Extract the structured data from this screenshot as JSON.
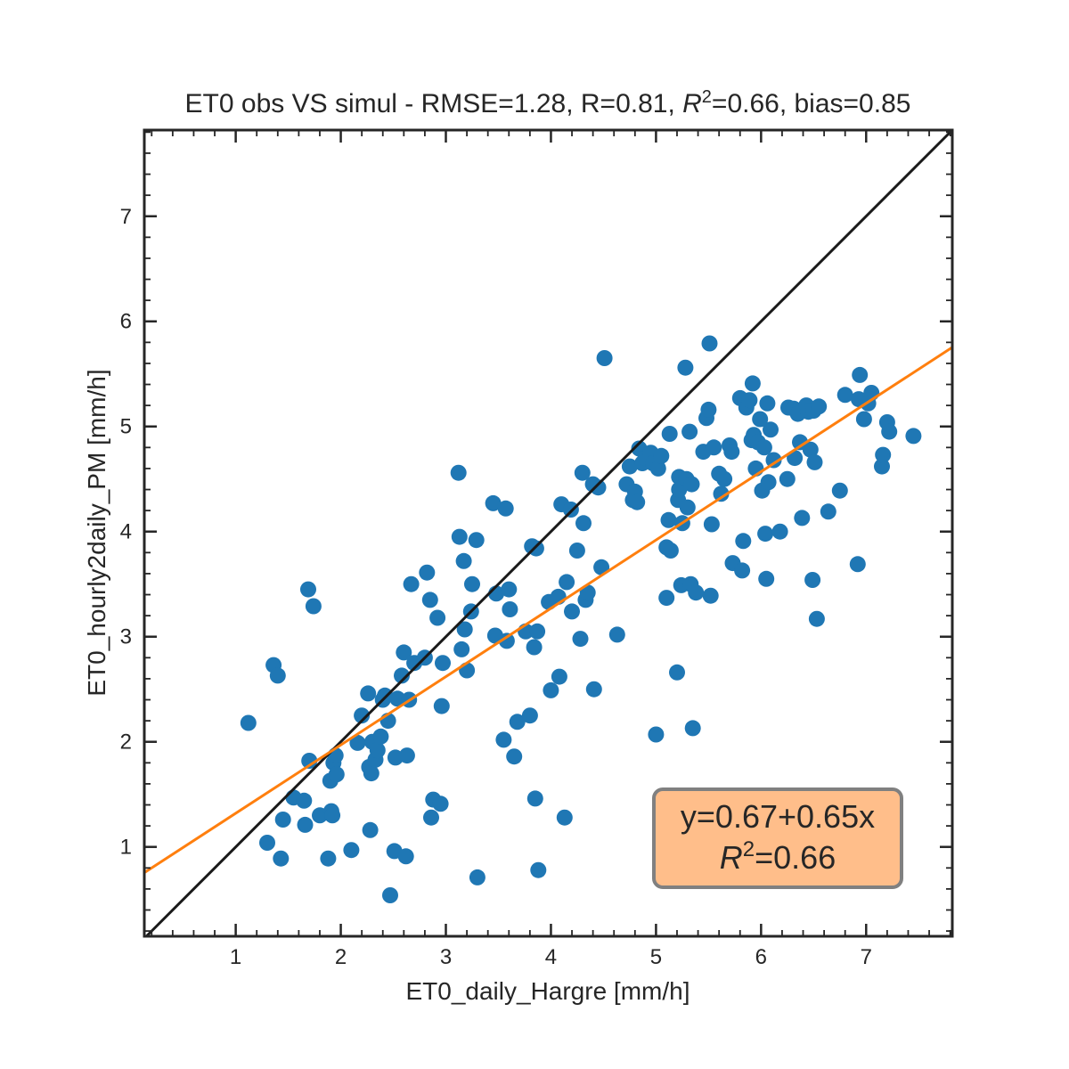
{
  "chart_data": {
    "type": "scatter",
    "title": "ET0 obs VS simul - RMSE=1.28, R=0.81, $R^2$=0.66, bias=0.85",
    "title_parts": {
      "pre": "ET0 obs VS simul - RMSE=1.28, R=0.81, ",
      "r": "R",
      "sup": "2",
      "post": "=0.66, bias=0.85"
    },
    "xlabel": "ET0_daily_Hargre [mm/h]",
    "ylabel": "ET0_hourly2daily_PM [mm/h]",
    "xlim": [
      0.13,
      7.82
    ],
    "ylim": [
      0.15,
      7.82
    ],
    "xticks": [
      1,
      2,
      3,
      4,
      5,
      6,
      7
    ],
    "yticks": [
      1,
      2,
      3,
      4,
      5,
      6,
      7
    ],
    "xtick_labels": [
      "1",
      "2",
      "3",
      "4",
      "5",
      "6",
      "7"
    ],
    "ytick_labels": [
      "1",
      "2",
      "3",
      "4",
      "5",
      "6",
      "7"
    ],
    "grid": false,
    "point_color": "#1f77b4",
    "identity_line": {
      "color": "#1a1a1a"
    },
    "fit_line": {
      "intercept": 0.67,
      "slope": 0.65,
      "color": "#ff7f0e"
    },
    "annotation": {
      "line1": "y=0.67+0.65x",
      "line2_r": "R",
      "line2_sup": "2",
      "line2_post": "=0.66",
      "facecolor": "#ffbe8a",
      "edgecolor": "#808080"
    },
    "points": [
      [
        1.12,
        2.18
      ],
      [
        1.3,
        1.04
      ],
      [
        1.36,
        2.73
      ],
      [
        1.4,
        2.63
      ],
      [
        1.43,
        0.89
      ],
      [
        1.45,
        1.26
      ],
      [
        1.55,
        1.47
      ],
      [
        1.65,
        1.44
      ],
      [
        1.66,
        1.21
      ],
      [
        1.69,
        3.45
      ],
      [
        1.7,
        1.82
      ],
      [
        1.74,
        3.29
      ],
      [
        1.8,
        1.3
      ],
      [
        1.88,
        0.89
      ],
      [
        1.9,
        1.63
      ],
      [
        1.91,
        1.34
      ],
      [
        1.92,
        1.3
      ],
      [
        1.93,
        1.8
      ],
      [
        1.95,
        1.87
      ],
      [
        1.96,
        1.69
      ],
      [
        2.1,
        0.97
      ],
      [
        2.16,
        1.99
      ],
      [
        2.2,
        2.25
      ],
      [
        2.26,
        2.46
      ],
      [
        2.27,
        1.76
      ],
      [
        2.28,
        1.16
      ],
      [
        2.29,
        1.7
      ],
      [
        2.3,
        2.0
      ],
      [
        2.33,
        1.83
      ],
      [
        2.35,
        1.92
      ],
      [
        2.38,
        2.05
      ],
      [
        2.4,
        2.4
      ],
      [
        2.42,
        2.44
      ],
      [
        2.45,
        2.2
      ],
      [
        2.47,
        0.54
      ],
      [
        2.51,
        0.96
      ],
      [
        2.52,
        1.85
      ],
      [
        2.54,
        2.41
      ],
      [
        2.58,
        2.63
      ],
      [
        2.6,
        2.85
      ],
      [
        2.62,
        0.91
      ],
      [
        2.63,
        1.87
      ],
      [
        2.65,
        2.4
      ],
      [
        2.67,
        3.5
      ],
      [
        2.7,
        2.75
      ],
      [
        2.8,
        2.8
      ],
      [
        2.82,
        3.61
      ],
      [
        2.85,
        3.35
      ],
      [
        2.86,
        1.28
      ],
      [
        2.88,
        1.45
      ],
      [
        2.92,
        3.18
      ],
      [
        2.95,
        1.41
      ],
      [
        2.96,
        2.34
      ],
      [
        2.97,
        2.75
      ],
      [
        3.12,
        4.56
      ],
      [
        3.13,
        3.95
      ],
      [
        3.15,
        2.88
      ],
      [
        3.17,
        3.72
      ],
      [
        3.18,
        3.07
      ],
      [
        3.2,
        2.68
      ],
      [
        3.24,
        3.24
      ],
      [
        3.25,
        3.5
      ],
      [
        3.29,
        3.92
      ],
      [
        3.3,
        0.71
      ],
      [
        3.45,
        4.27
      ],
      [
        3.47,
        3.01
      ],
      [
        3.48,
        3.41
      ],
      [
        3.55,
        2.02
      ],
      [
        3.57,
        4.22
      ],
      [
        3.58,
        2.96
      ],
      [
        3.6,
        3.45
      ],
      [
        3.61,
        3.26
      ],
      [
        3.65,
        1.86
      ],
      [
        3.68,
        2.19
      ],
      [
        3.76,
        3.05
      ],
      [
        3.8,
        2.25
      ],
      [
        3.82,
        3.86
      ],
      [
        3.84,
        2.9
      ],
      [
        3.85,
        1.46
      ],
      [
        3.86,
        3.84
      ],
      [
        3.87,
        3.05
      ],
      [
        3.88,
        0.78
      ],
      [
        3.98,
        3.33
      ],
      [
        4.0,
        2.49
      ],
      [
        4.07,
        3.38
      ],
      [
        4.08,
        2.62
      ],
      [
        4.1,
        4.26
      ],
      [
        4.13,
        1.28
      ],
      [
        4.15,
        3.52
      ],
      [
        4.19,
        4.21
      ],
      [
        4.2,
        3.24
      ],
      [
        4.25,
        3.82
      ],
      [
        4.28,
        2.98
      ],
      [
        4.3,
        4.56
      ],
      [
        4.31,
        4.08
      ],
      [
        4.33,
        3.35
      ],
      [
        4.35,
        3.42
      ],
      [
        4.4,
        4.45
      ],
      [
        4.41,
        2.5
      ],
      [
        4.45,
        4.42
      ],
      [
        4.48,
        3.66
      ],
      [
        4.51,
        5.65
      ],
      [
        4.63,
        3.02
      ],
      [
        4.72,
        4.45
      ],
      [
        4.75,
        4.62
      ],
      [
        4.78,
        4.3
      ],
      [
        4.8,
        4.38
      ],
      [
        4.82,
        4.28
      ],
      [
        4.84,
        4.79
      ],
      [
        4.87,
        4.65
      ],
      [
        4.9,
        4.7
      ],
      [
        4.95,
        4.75
      ],
      [
        4.97,
        4.65
      ],
      [
        5.0,
        2.07
      ],
      [
        5.02,
        4.6
      ],
      [
        5.05,
        4.72
      ],
      [
        5.1,
        3.37
      ],
      [
        5.1,
        3.85
      ],
      [
        5.12,
        4.11
      ],
      [
        5.13,
        4.93
      ],
      [
        5.14,
        3.82
      ],
      [
        5.2,
        2.66
      ],
      [
        5.21,
        4.3
      ],
      [
        5.22,
        4.52
      ],
      [
        5.22,
        4.4
      ],
      [
        5.24,
        3.49
      ],
      [
        5.25,
        4.08
      ],
      [
        5.28,
        5.56
      ],
      [
        5.29,
        4.5
      ],
      [
        5.3,
        4.23
      ],
      [
        5.32,
        4.95
      ],
      [
        5.33,
        3.5
      ],
      [
        5.34,
        4.45
      ],
      [
        5.35,
        2.13
      ],
      [
        5.38,
        3.42
      ],
      [
        5.45,
        4.76
      ],
      [
        5.48,
        5.08
      ],
      [
        5.5,
        5.16
      ],
      [
        5.51,
        5.79
      ],
      [
        5.52,
        3.39
      ],
      [
        5.53,
        4.07
      ],
      [
        5.55,
        4.8
      ],
      [
        5.6,
        4.55
      ],
      [
        5.62,
        4.36
      ],
      [
        5.65,
        4.5
      ],
      [
        5.7,
        4.82
      ],
      [
        5.72,
        4.76
      ],
      [
        5.73,
        3.7
      ],
      [
        5.8,
        5.27
      ],
      [
        5.82,
        3.63
      ],
      [
        5.83,
        3.91
      ],
      [
        5.86,
        5.18
      ],
      [
        5.89,
        5.25
      ],
      [
        5.91,
        4.87
      ],
      [
        5.92,
        5.41
      ],
      [
        5.93,
        4.92
      ],
      [
        5.95,
        4.6
      ],
      [
        5.97,
        4.85
      ],
      [
        5.99,
        5.07
      ],
      [
        6.01,
        4.39
      ],
      [
        6.03,
        4.8
      ],
      [
        6.04,
        3.98
      ],
      [
        6.05,
        3.55
      ],
      [
        6.06,
        5.22
      ],
      [
        6.07,
        4.47
      ],
      [
        6.09,
        4.97
      ],
      [
        6.12,
        4.68
      ],
      [
        6.18,
        4.0
      ],
      [
        6.25,
        4.5
      ],
      [
        6.26,
        5.18
      ],
      [
        6.31,
        5.17
      ],
      [
        6.32,
        4.7
      ],
      [
        6.35,
        5.12
      ],
      [
        6.37,
        4.85
      ],
      [
        6.39,
        4.13
      ],
      [
        6.43,
        5.2
      ],
      [
        6.45,
        5.14
      ],
      [
        6.47,
        4.78
      ],
      [
        6.49,
        3.54
      ],
      [
        6.5,
        5.15
      ],
      [
        6.51,
        4.66
      ],
      [
        6.53,
        3.17
      ],
      [
        6.55,
        5.19
      ],
      [
        6.64,
        4.19
      ],
      [
        6.75,
        4.39
      ],
      [
        6.8,
        5.3
      ],
      [
        6.92,
        3.69
      ],
      [
        6.93,
        5.26
      ],
      [
        6.94,
        5.49
      ],
      [
        6.98,
        5.07
      ],
      [
        7.02,
        5.22
      ],
      [
        7.05,
        5.32
      ],
      [
        7.15,
        4.62
      ],
      [
        7.16,
        4.73
      ],
      [
        7.2,
        5.04
      ],
      [
        7.22,
        4.95
      ],
      [
        7.45,
        4.91
      ]
    ]
  }
}
